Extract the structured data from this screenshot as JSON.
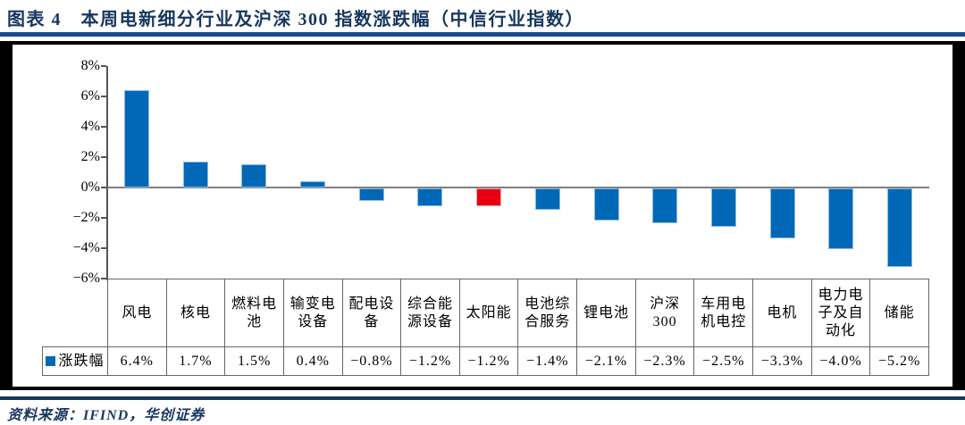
{
  "header": {
    "figure_title": "图表 4　本周电新细分行业及沪深 300 指数涨跌幅（中信行业指数）"
  },
  "footer": {
    "source": "资料来源：IFIND，华创证券"
  },
  "chart_data": {
    "type": "bar",
    "title": "本周电新细分行业及沪深300指数涨跌幅（中信行业指数）",
    "categories": [
      "风电",
      "核电",
      "燃料电池",
      "输变电设备",
      "配电设备",
      "综合能源设备",
      "太阳能",
      "电池综合服务",
      "锂电池",
      "沪深300",
      "车用电机电控",
      "电机",
      "电力电子及自动化",
      "储能"
    ],
    "series": [
      {
        "name": "涨跌幅",
        "values": [
          6.4,
          1.7,
          1.5,
          0.4,
          -0.8,
          -1.2,
          -1.2,
          -1.4,
          -2.1,
          -2.3,
          -2.5,
          -3.3,
          -4.0,
          -5.2
        ]
      }
    ],
    "value_labels": [
      "6.4%",
      "1.7%",
      "1.5%",
      "0.4%",
      "−0.8%",
      "−1.2%",
      "−1.2%",
      "−1.4%",
      "−2.1%",
      "−2.3%",
      "−2.5%",
      "−3.3%",
      "−4.0%",
      "−5.2%"
    ],
    "yticks": [
      "8%",
      "6%",
      "4%",
      "2%",
      "0%",
      "−2%",
      "−4%",
      "−6%"
    ],
    "ylim": [
      -6,
      8
    ],
    "xlabel": "",
    "ylabel": "",
    "grid": false,
    "legend_position": "bottom-table",
    "highlight_index": 6,
    "colors": {
      "bar": "#0068B7",
      "highlight": "#E60012",
      "title_navy": "#17375E",
      "rule_blue": "#1A4B8C",
      "axis_gray": "#808080"
    }
  }
}
